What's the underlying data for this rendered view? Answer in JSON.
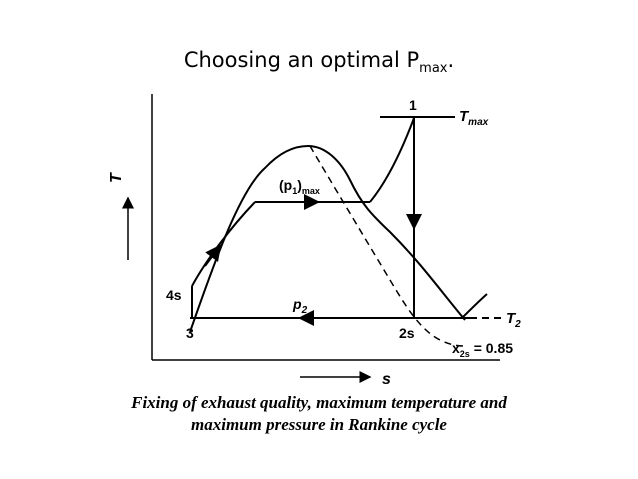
{
  "slide": {
    "title_main": "Choosing an optimal P",
    "title_sub": "max",
    "title_end": "."
  },
  "diagram": {
    "axis_y": "T",
    "axis_x": "s",
    "labels": {
      "point_1": "1",
      "tmax": "T",
      "tmax_sub": "max",
      "p1max": "(p",
      "p1max_sub1": "1",
      "p1max_close": ")",
      "p1max_sub2": "max",
      "point_4s": "4s",
      "point_3": "3",
      "p2": "p",
      "p2_sub": "2",
      "point_2s": "2s",
      "t2": "T",
      "t2_sub": "2",
      "x2s": "x",
      "x2s_sub": "2s",
      "x2s_value": " = 0.85"
    },
    "caption_line1": "Fixing of exhaust quality, maximum temperature and",
    "caption_line2": "maximum pressure in Rankine cycle"
  }
}
